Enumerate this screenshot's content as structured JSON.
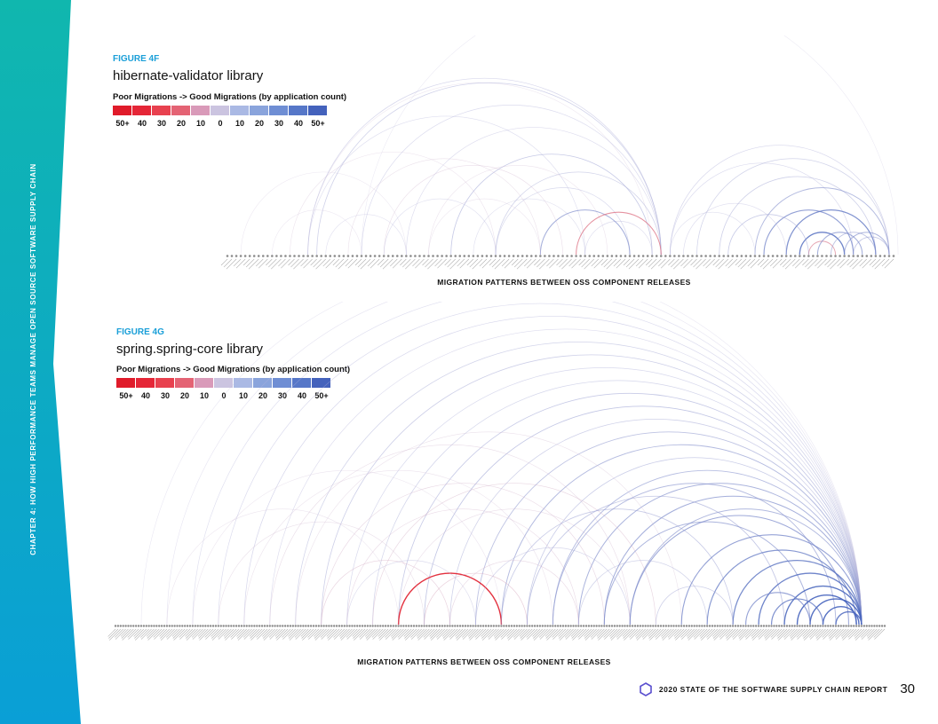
{
  "sidebar": {
    "chapter_text": "CHAPTER 4: HOW HIGH PERFORMANCE TEAMS MANAGE OPEN SOURCE SOFTWARE SUPPLY CHAIN",
    "colors": {
      "top": "#10b7ae",
      "bottom": "#0a9fd6"
    }
  },
  "legend": {
    "title": "Poor Migrations -> Good Migrations (by application count)",
    "ticks": [
      "50+",
      "40",
      "30",
      "20",
      "10",
      "0",
      "10",
      "20",
      "30",
      "40",
      "50+"
    ],
    "swatches": [
      "#e01b2a",
      "#e52637",
      "#e8414f",
      "#e46374",
      "#d99ab9",
      "#cbc4e0",
      "#aab9e4",
      "#8aa4dc",
      "#6f8ed4",
      "#5677c8",
      "#4462bc"
    ]
  },
  "chart_data": [
    {
      "type": "arc",
      "figure_label": "FIGURE 4F",
      "title": "hibernate-validator library",
      "legend_title": "Poor Migrations -> Good Migrations (by application count)",
      "xlabel": "MIGRATION PATTERNS BETWEEN OSS COMPONENT RELEASES",
      "node_count": 150,
      "scale": {
        "min": -50,
        "max": 50,
        "poor_color": "#e01b2a",
        "neutral_color": "#cbc4e0",
        "good_color": "#4462bc"
      },
      "arcs": [
        {
          "from": 30,
          "to": 150,
          "count": 2
        },
        {
          "from": 18,
          "to": 95,
          "count": -3
        },
        {
          "from": 14,
          "to": 60,
          "count": -4
        },
        {
          "from": 3,
          "to": 40,
          "count": -2
        },
        {
          "from": 18,
          "to": 97,
          "count": 12
        },
        {
          "from": 18,
          "to": 80,
          "count": 8
        },
        {
          "from": 20,
          "to": 97,
          "count": 15
        },
        {
          "from": 30,
          "to": 97,
          "count": 10
        },
        {
          "from": 40,
          "to": 97,
          "count": 9
        },
        {
          "from": 50,
          "to": 95,
          "count": 18
        },
        {
          "from": 60,
          "to": 97,
          "count": 14
        },
        {
          "from": 27,
          "to": 70,
          "count": -5
        },
        {
          "from": 35,
          "to": 75,
          "count": -6
        },
        {
          "from": 45,
          "to": 85,
          "count": -4
        },
        {
          "from": 55,
          "to": 80,
          "count": 7
        },
        {
          "from": 60,
          "to": 90,
          "count": 11
        },
        {
          "from": 80,
          "to": 95,
          "count": 9
        },
        {
          "from": 70,
          "to": 90,
          "count": 30
        },
        {
          "from": 78,
          "to": 97,
          "count": -30
        },
        {
          "from": 10,
          "to": 30,
          "count": -2
        },
        {
          "from": 22,
          "to": 40,
          "count": 6
        },
        {
          "from": 35,
          "to": 60,
          "count": 8
        },
        {
          "from": 45,
          "to": 70,
          "count": -3
        },
        {
          "from": 99,
          "to": 148,
          "count": 12
        },
        {
          "from": 99,
          "to": 140,
          "count": 10
        },
        {
          "from": 105,
          "to": 148,
          "count": 14
        },
        {
          "from": 110,
          "to": 145,
          "count": 16
        },
        {
          "from": 118,
          "to": 148,
          "count": 25
        },
        {
          "from": 120,
          "to": 140,
          "count": 35
        },
        {
          "from": 125,
          "to": 145,
          "count": 40
        },
        {
          "from": 128,
          "to": 138,
          "count": 45
        },
        {
          "from": 130,
          "to": 136,
          "count": -25
        },
        {
          "from": 132,
          "to": 142,
          "count": 30
        },
        {
          "from": 138,
          "to": 148,
          "count": 28
        },
        {
          "from": 135,
          "to": 145,
          "count": 22
        },
        {
          "from": 140,
          "to": 148,
          "count": 20
        },
        {
          "from": 112,
          "to": 130,
          "count": 18
        },
        {
          "from": 102,
          "to": 125,
          "count": 9
        },
        {
          "from": 99,
          "to": 118,
          "count": 7
        }
      ]
    },
    {
      "type": "arc",
      "figure_label": "FIGURE 4G",
      "title": "spring.spring-core library",
      "legend_title": "Poor Migrations -> Good Migrations (by application count)",
      "xlabel": "MIGRATION PATTERNS BETWEEN OSS COMPONENT RELEASES",
      "node_count": 300,
      "scale": {
        "min": -50,
        "max": 50,
        "poor_color": "#e01b2a",
        "neutral_color": "#cbc4e0",
        "good_color": "#4462bc"
      },
      "arcs": [
        {
          "from": 10,
          "to": 290,
          "count": 3
        },
        {
          "from": 20,
          "to": 290,
          "count": 5
        },
        {
          "from": 30,
          "to": 290,
          "count": 8
        },
        {
          "from": 40,
          "to": 290,
          "count": 10
        },
        {
          "from": 50,
          "to": 290,
          "count": 12
        },
        {
          "from": 60,
          "to": 290,
          "count": 9
        },
        {
          "from": 70,
          "to": 290,
          "count": 14
        },
        {
          "from": 80,
          "to": 290,
          "count": 16
        },
        {
          "from": 90,
          "to": 290,
          "count": 11
        },
        {
          "from": 100,
          "to": 290,
          "count": 13
        },
        {
          "from": 110,
          "to": 290,
          "count": 18
        },
        {
          "from": 120,
          "to": 290,
          "count": 20
        },
        {
          "from": 130,
          "to": 290,
          "count": 15
        },
        {
          "from": 140,
          "to": 290,
          "count": 22
        },
        {
          "from": 150,
          "to": 290,
          "count": 25
        },
        {
          "from": 160,
          "to": 290,
          "count": 17
        },
        {
          "from": 170,
          "to": 290,
          "count": 24
        },
        {
          "from": 180,
          "to": 290,
          "count": 28
        },
        {
          "from": 190,
          "to": 290,
          "count": 30
        },
        {
          "from": 200,
          "to": 290,
          "count": 26
        },
        {
          "from": 60,
          "to": 200,
          "count": -6
        },
        {
          "from": 70,
          "to": 220,
          "count": -5
        },
        {
          "from": 80,
          "to": 190,
          "count": -8
        },
        {
          "from": 90,
          "to": 180,
          "count": -7
        },
        {
          "from": 100,
          "to": 210,
          "count": -9
        },
        {
          "from": 110,
          "to": 200,
          "count": -6
        },
        {
          "from": 50,
          "to": 170,
          "count": -4
        },
        {
          "from": 30,
          "to": 150,
          "count": -3
        },
        {
          "from": 110,
          "to": 150,
          "count": -50
        },
        {
          "from": 120,
          "to": 160,
          "count": -12
        },
        {
          "from": 140,
          "to": 200,
          "count": 12
        },
        {
          "from": 150,
          "to": 240,
          "count": 18
        },
        {
          "from": 160,
          "to": 260,
          "count": 20
        },
        {
          "from": 170,
          "to": 280,
          "count": 25
        },
        {
          "from": 190,
          "to": 270,
          "count": 28
        },
        {
          "from": 200,
          "to": 285,
          "count": 32
        },
        {
          "from": 220,
          "to": 290,
          "count": 35
        },
        {
          "from": 230,
          "to": 288,
          "count": 38
        },
        {
          "from": 240,
          "to": 290,
          "count": 42
        },
        {
          "from": 250,
          "to": 290,
          "count": 45
        },
        {
          "from": 260,
          "to": 290,
          "count": 48
        },
        {
          "from": 265,
          "to": 288,
          "count": 50
        },
        {
          "from": 270,
          "to": 290,
          "count": 50
        },
        {
          "from": 275,
          "to": 289,
          "count": 50
        },
        {
          "from": 280,
          "to": 290,
          "count": 46
        },
        {
          "from": 255,
          "to": 275,
          "count": 40
        },
        {
          "from": 245,
          "to": 270,
          "count": 35
        },
        {
          "from": 210,
          "to": 240,
          "count": 15
        },
        {
          "from": 40,
          "to": 120,
          "count": -5
        },
        {
          "from": 20,
          "to": 110,
          "count": -3
        },
        {
          "from": 80,
          "to": 130,
          "count": -10
        },
        {
          "from": 90,
          "to": 140,
          "count": 9
        },
        {
          "from": 130,
          "to": 180,
          "count": -8
        },
        {
          "from": 180,
          "to": 230,
          "count": 14
        }
      ]
    }
  ],
  "footer": {
    "report_title": "2020 STATE OF THE SOFTWARE SUPPLY CHAIN REPORT",
    "page_number": "30",
    "hex_color": "#5a4fcf"
  }
}
